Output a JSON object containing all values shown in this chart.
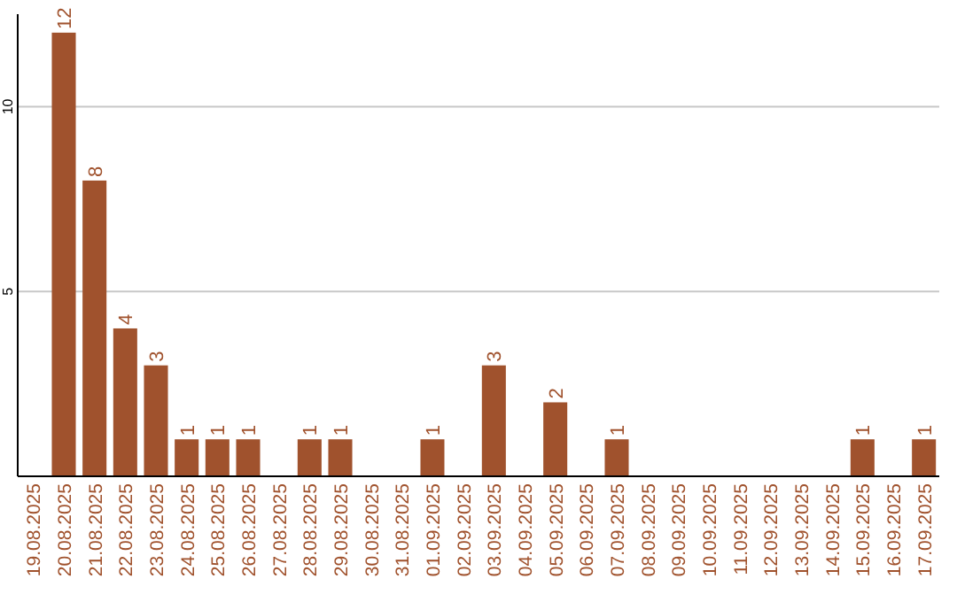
{
  "chart_data": {
    "type": "bar",
    "categories": [
      "19.08.2025",
      "20.08.2025",
      "21.08.2025",
      "22.08.2025",
      "23.08.2025",
      "24.08.2025",
      "25.08.2025",
      "26.08.2025",
      "27.08.2025",
      "28.08.2025",
      "29.08.2025",
      "30.08.2025",
      "31.08.2025",
      "01.09.2025",
      "02.09.2025",
      "03.09.2025",
      "04.09.2025",
      "05.09.2025",
      "06.09.2025",
      "07.09.2025",
      "08.09.2025",
      "09.09.2025",
      "10.09.2025",
      "11.09.2025",
      "12.09.2025",
      "13.09.2025",
      "14.09.2025",
      "15.09.2025",
      "16.09.2025",
      "17.09.2025"
    ],
    "values": [
      0,
      12,
      8,
      4,
      3,
      1,
      1,
      1,
      0,
      1,
      1,
      0,
      0,
      1,
      0,
      3,
      0,
      2,
      0,
      1,
      0,
      0,
      0,
      0,
      0,
      0,
      0,
      1,
      0,
      1
    ],
    "value_labels": [
      null,
      "12",
      "8",
      "4",
      "3",
      "1",
      "1",
      "1",
      null,
      "1",
      "1",
      null,
      null,
      "1",
      null,
      "3",
      null,
      "2",
      null,
      "1",
      null,
      null,
      null,
      null,
      null,
      null,
      null,
      "1",
      null,
      "1"
    ],
    "color": "#a0522d",
    "ylim": [
      0,
      12.5
    ],
    "yticks": [
      5,
      10
    ],
    "grid": "y"
  }
}
